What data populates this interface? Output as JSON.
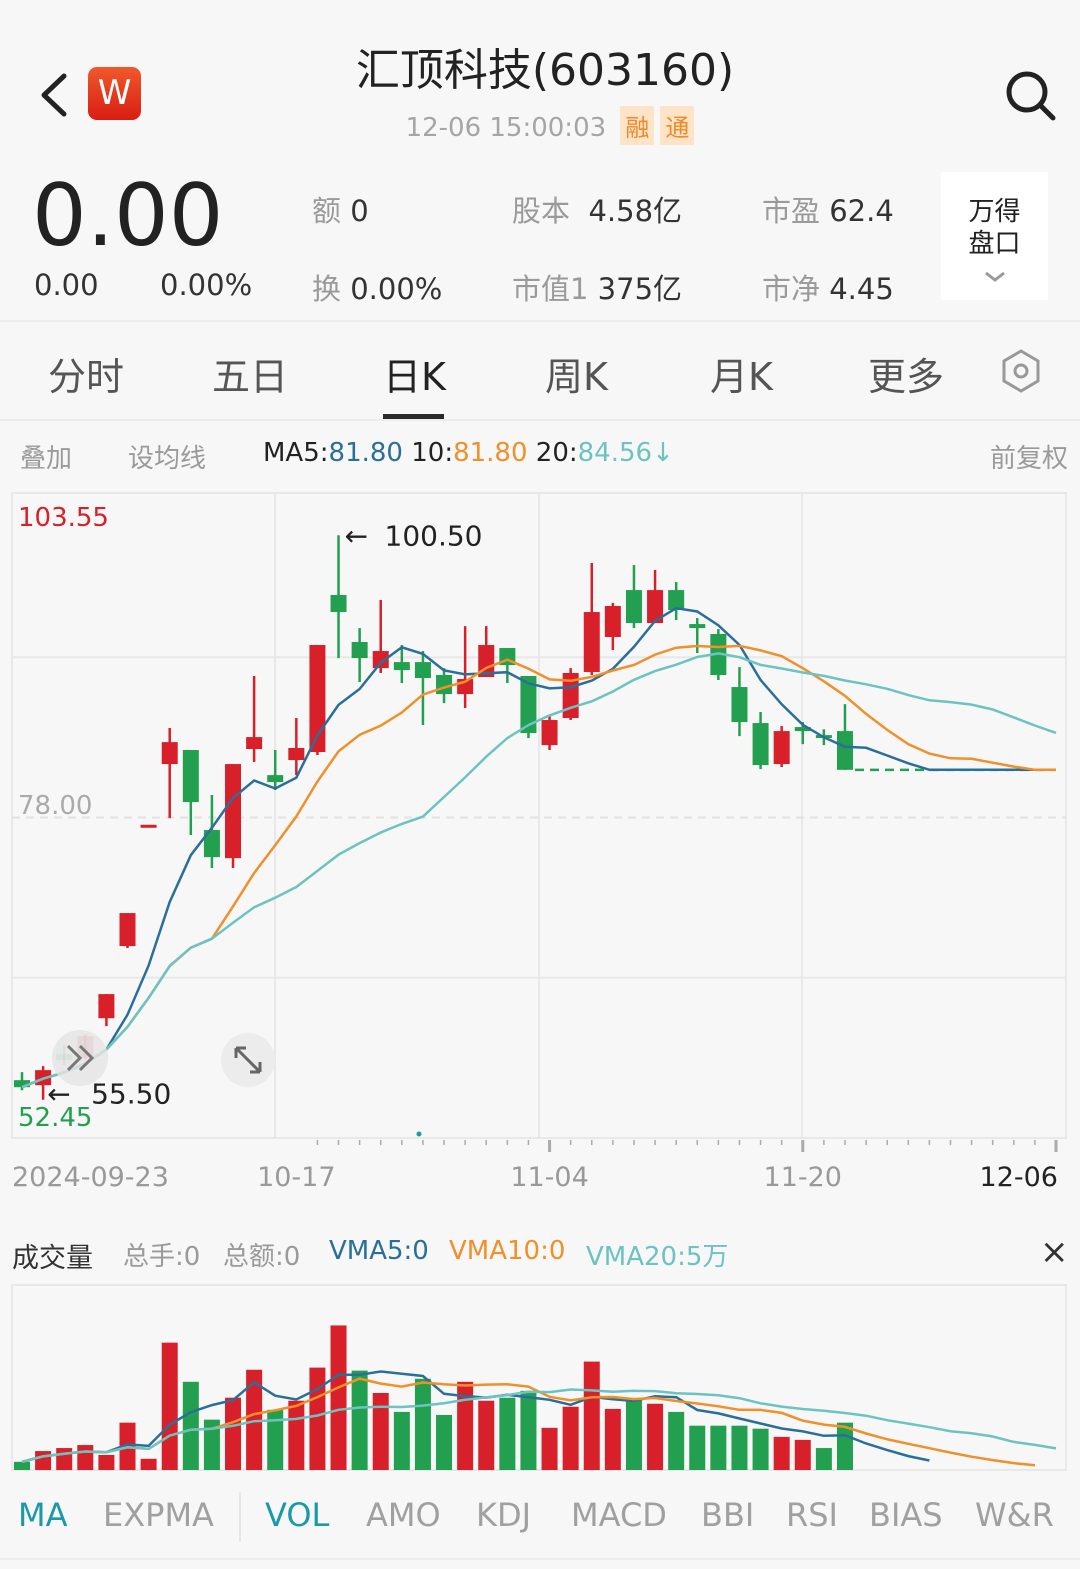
{
  "header": {
    "title": "汇顶科技(603160)",
    "timestamp": "12-06 15:00:03",
    "badges": [
      "融",
      "通"
    ],
    "logo_letter": "W",
    "icons": {
      "back": "chevron-left-icon",
      "search": "search-icon"
    }
  },
  "quote": {
    "price": "0.00",
    "change": "0.00",
    "change_pct": "0.00%",
    "stats": [
      {
        "label": "额",
        "value": "0"
      },
      {
        "label": "换",
        "value": "0.00%"
      },
      {
        "label": "股本",
        "value": "4.58亿"
      },
      {
        "label": "市值1",
        "value": "375亿"
      },
      {
        "label": "市盈",
        "value": "62.4"
      },
      {
        "label": "市净",
        "value": "4.45"
      }
    ],
    "panel_button": {
      "line1": "万得",
      "line2": "盘口"
    }
  },
  "tabs": [
    {
      "label": "分时"
    },
    {
      "label": "五日"
    },
    {
      "label": "日K",
      "active": true
    },
    {
      "label": "周K"
    },
    {
      "label": "月K"
    },
    {
      "label": "更多"
    }
  ],
  "ma_bar": {
    "overlay": "叠加",
    "set_ma": "设均线",
    "ma5_label": "MA5:",
    "ma5_value": "81.80",
    "ma10_label": "10:",
    "ma10_value": "81.80",
    "ma20_label": "20:",
    "ma20_value": "84.56",
    "ma20_arrow": "↓",
    "adjust": "前复权"
  },
  "colors": {
    "up": "#d8202a",
    "down": "#22a050",
    "ma5": "#2a6f9a",
    "ma10": "#f0902a",
    "ma20": "#6cc3c1",
    "accent": "#1a9aa8"
  },
  "chart_data": {
    "type": "candlestick",
    "ylim": [
      52.45,
      103.55
    ],
    "y_labels": {
      "top": "103.55",
      "mid": "78.00",
      "bottom": "52.45"
    },
    "x_tick_labels": [
      "2024-09-23",
      "10-17",
      "11-04",
      "11-20",
      "12-06"
    ],
    "annotations": {
      "high": "100.50",
      "low": "55.50",
      "high_arrow": "←",
      "low_arrow": "←"
    },
    "candles": [
      {
        "date": "09-23",
        "o": 57.06,
        "h": 57.7,
        "l": 56.26,
        "c": 56.5,
        "v": 1.9
      },
      {
        "date": "09-24",
        "o": 56.66,
        "h": 58.18,
        "l": 55.5,
        "c": 57.86,
        "v": 4.4
      },
      {
        "date": "09-25",
        "o": 59.13,
        "h": 59.85,
        "l": 58.26,
        "c": 58.66,
        "v": 5.1
      },
      {
        "date": "09-26",
        "o": 58.82,
        "h": 60.73,
        "l": 58.66,
        "c": 60.57,
        "v": 5.8
      },
      {
        "date": "09-27",
        "o": 62.0,
        "h": 63.92,
        "l": 61.37,
        "c": 63.92,
        "v": 3.5
      },
      {
        "date": "09-30",
        "o": 67.75,
        "h": 70.38,
        "l": 67.59,
        "c": 70.38,
        "v": 11.0
      },
      {
        "date": "10-08",
        "o": 77.42,
        "h": 77.42,
        "l": 77.42,
        "c": 77.42,
        "v": 2.6
      },
      {
        "date": "10-09",
        "o": 82.26,
        "h": 85.13,
        "l": 77.95,
        "c": 84.01,
        "v": 29.6
      },
      {
        "date": "10-10",
        "o": 83.38,
        "h": 83.38,
        "l": 76.6,
        "c": 79.23,
        "v": 20.5
      },
      {
        "date": "10-11",
        "o": 77.0,
        "h": 79.79,
        "l": 73.97,
        "c": 74.84,
        "v": 11.7
      },
      {
        "date": "10-14",
        "o": 74.76,
        "h": 82.26,
        "l": 73.97,
        "c": 82.26,
        "v": 16.8
      },
      {
        "date": "10-15",
        "o": 83.46,
        "h": 89.28,
        "l": 82.42,
        "c": 84.41,
        "v": 23.3
      },
      {
        "date": "10-16",
        "o": 81.38,
        "h": 83.38,
        "l": 80.19,
        "c": 80.82,
        "v": 14.0
      },
      {
        "date": "10-17",
        "o": 82.58,
        "h": 85.93,
        "l": 81.38,
        "c": 83.54,
        "v": 16.1
      },
      {
        "date": "10-18",
        "o": 83.22,
        "h": 91.75,
        "l": 82.98,
        "c": 91.75,
        "v": 23.8
      },
      {
        "date": "10-21",
        "o": 95.74,
        "h": 100.5,
        "l": 90.71,
        "c": 94.38,
        "v": 33.6
      },
      {
        "date": "10-22",
        "o": 91.99,
        "h": 93.1,
        "l": 88.8,
        "c": 90.71,
        "v": 23.1
      },
      {
        "date": "10-23",
        "o": 89.91,
        "h": 95.34,
        "l": 89.52,
        "c": 91.27,
        "v": 17.9
      },
      {
        "date": "10-24",
        "o": 90.39,
        "h": 91.75,
        "l": 88.72,
        "c": 89.75,
        "v": 13.5
      },
      {
        "date": "10-25",
        "o": 90.39,
        "h": 91.27,
        "l": 85.37,
        "c": 89.12,
        "v": 21.2
      },
      {
        "date": "10-28",
        "o": 89.36,
        "h": 89.91,
        "l": 87.12,
        "c": 87.84,
        "v": 12.8
      },
      {
        "date": "10-29",
        "o": 87.84,
        "h": 93.26,
        "l": 86.73,
        "c": 89.04,
        "v": 20.5
      },
      {
        "date": "10-30",
        "o": 89.2,
        "h": 93.26,
        "l": 89.2,
        "c": 91.75,
        "v": 16.1
      },
      {
        "date": "10-31",
        "o": 91.51,
        "h": 91.51,
        "l": 88.72,
        "c": 90.15,
        "v": 16.8
      },
      {
        "date": "11-01",
        "o": 89.28,
        "h": 89.28,
        "l": 84.33,
        "c": 84.73,
        "v": 18.4
      },
      {
        "date": "11-04",
        "o": 83.77,
        "h": 86.17,
        "l": 83.38,
        "c": 85.77,
        "v": 9.8
      },
      {
        "date": "11-05",
        "o": 85.93,
        "h": 89.91,
        "l": 85.77,
        "c": 89.52,
        "v": 14.7
      },
      {
        "date": "11-06",
        "o": 89.6,
        "h": 98.29,
        "l": 89.36,
        "c": 94.38,
        "v": 25.2
      },
      {
        "date": "11-07",
        "o": 92.39,
        "h": 95.1,
        "l": 91.35,
        "c": 94.86,
        "v": 14.2
      },
      {
        "date": "11-08",
        "o": 96.13,
        "h": 98.13,
        "l": 93.1,
        "c": 93.5,
        "v": 16.3
      },
      {
        "date": "11-11",
        "o": 93.5,
        "h": 97.73,
        "l": 93.5,
        "c": 96.13,
        "v": 15.4
      },
      {
        "date": "11-12",
        "o": 96.13,
        "h": 96.77,
        "l": 93.74,
        "c": 94.54,
        "v": 13.5
      },
      {
        "date": "11-13",
        "o": 93.42,
        "h": 93.9,
        "l": 91.11,
        "c": 93.1,
        "v": 10.3
      },
      {
        "date": "11-14",
        "o": 92.63,
        "h": 93.02,
        "l": 88.96,
        "c": 89.36,
        "v": 10.3
      },
      {
        "date": "11-15",
        "o": 88.4,
        "h": 89.99,
        "l": 84.49,
        "c": 85.61,
        "v": 10.3
      },
      {
        "date": "11-18",
        "o": 85.53,
        "h": 86.41,
        "l": 81.86,
        "c": 82.18,
        "v": 9.6
      },
      {
        "date": "11-19",
        "o": 82.26,
        "h": 85.29,
        "l": 82.02,
        "c": 84.89,
        "v": 7.7
      },
      {
        "date": "11-20",
        "o": 85.21,
        "h": 85.61,
        "l": 83.85,
        "c": 84.89,
        "v": 7.0
      },
      {
        "date": "11-21",
        "o": 84.57,
        "h": 85.03,
        "l": 83.77,
        "c": 84.41,
        "v": 5.1
      },
      {
        "date": "11-22",
        "o": 84.89,
        "h": 87.04,
        "l": 81.8,
        "c": 81.8,
        "v": 11.0
      }
    ],
    "suspended": {
      "dates": [
        "11-25",
        "11-26",
        "11-27",
        "11-28",
        "11-29",
        "12-02",
        "12-03",
        "12-04",
        "12-05",
        "12-06"
      ],
      "close": 81.8
    },
    "ma_periods": [
      5,
      10,
      20
    ]
  },
  "volume": {
    "title": "成交量",
    "total_hands": "总手:0",
    "total_amount": "总额:0",
    "vma5": "VMA5:0",
    "vma10": "VMA10:0",
    "vma20": "VMA20:5万",
    "close_glyph": "×",
    "unit": "万手",
    "ylim": [
      0,
      43
    ]
  },
  "indicators": [
    {
      "label": "MA",
      "active": true
    },
    {
      "label": "EXPMA"
    },
    {
      "label": "VOL",
      "active": true
    },
    {
      "label": "AMO"
    },
    {
      "label": "KDJ"
    },
    {
      "label": "MACD"
    },
    {
      "label": "BBI"
    },
    {
      "label": "RSI"
    },
    {
      "label": "BIAS"
    },
    {
      "label": "W&R"
    }
  ]
}
